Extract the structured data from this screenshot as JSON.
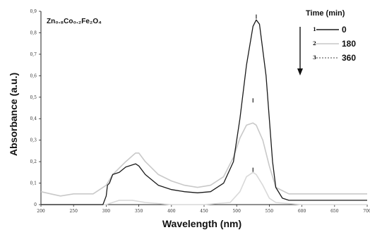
{
  "chart_data": {
    "type": "line",
    "title": "",
    "annotation": "Zn₀.₈Co₀.₂Fe₂O₄",
    "xlabel": "Wavelength (nm)",
    "ylabel": "Absorbance (a.u.)",
    "xlim": [
      200,
      700
    ],
    "ylim": [
      0,
      0.9
    ],
    "x_ticks": [
      "200",
      "250",
      "300",
      "350",
      "400",
      "450",
      "500",
      "550",
      "600",
      "650",
      "700"
    ],
    "y_ticks": [
      "0",
      "0,1",
      "0,2",
      "0,3",
      "0,4",
      "0,5",
      "0,6",
      "0,7",
      "0,8",
      "0,9"
    ],
    "grid": false,
    "legend": {
      "title": "Time (min)",
      "position": "top-right",
      "entries": [
        {
          "number": "1",
          "label": "0"
        },
        {
          "number": "2",
          "label": "180"
        },
        {
          "number": "3",
          "label": "360"
        }
      ]
    },
    "peak_markers": [
      {
        "label": "I",
        "x": 530,
        "y": 0.885
      },
      {
        "label": "I",
        "x": 525,
        "y": 0.495
      },
      {
        "label": "I",
        "x": 525,
        "y": 0.172
      }
    ],
    "series": [
      {
        "color": "#1a1a1a",
        "x": [
          200,
          260,
          295,
          300,
          302,
          305,
          310,
          320,
          330,
          345,
          350,
          360,
          380,
          400,
          420,
          440,
          460,
          480,
          495,
          505,
          515,
          525,
          530,
          535,
          545,
          555,
          560,
          570,
          580,
          600,
          650,
          700
        ],
        "y": [
          0,
          0,
          0,
          0.04,
          0.09,
          0.1,
          0.14,
          0.15,
          0.175,
          0.19,
          0.18,
          0.14,
          0.09,
          0.07,
          0.06,
          0.055,
          0.06,
          0.1,
          0.2,
          0.4,
          0.65,
          0.83,
          0.86,
          0.84,
          0.6,
          0.2,
          0.08,
          0.03,
          0.02,
          0.02,
          0.02,
          0.02
        ]
      },
      {
        "color": "#c9c9c9",
        "x": [
          200,
          215,
          230,
          250,
          280,
          300,
          310,
          330,
          345,
          350,
          360,
          380,
          400,
          420,
          440,
          460,
          480,
          495,
          505,
          515,
          525,
          530,
          540,
          550,
          560,
          580,
          600,
          650,
          700
        ],
        "y": [
          0.06,
          0.05,
          0.04,
          0.05,
          0.05,
          0.09,
          0.14,
          0.2,
          0.24,
          0.24,
          0.2,
          0.14,
          0.11,
          0.09,
          0.08,
          0.09,
          0.13,
          0.22,
          0.31,
          0.37,
          0.38,
          0.37,
          0.3,
          0.18,
          0.08,
          0.05,
          0.05,
          0.05,
          0.05
        ]
      },
      {
        "color": "#d9d9d9",
        "x": [
          200,
          300,
          320,
          340,
          360,
          400,
          450,
          490,
          505,
          515,
          525,
          530,
          540,
          550,
          560,
          600,
          700
        ],
        "y": [
          0,
          0,
          0.02,
          0.02,
          0.01,
          0,
          0,
          0.01,
          0.06,
          0.13,
          0.15,
          0.14,
          0.09,
          0.03,
          0.01,
          0,
          0
        ]
      }
    ]
  }
}
